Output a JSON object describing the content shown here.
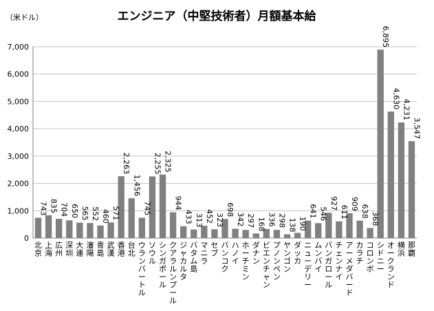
{
  "chart_data": {
    "type": "bar",
    "title": "エンジニア（中堅技術者）月額基本給",
    "unit_label": "（米ドル）",
    "ylim": [
      0,
      7000
    ],
    "yticks": [
      "0",
      "1,000",
      "2,000",
      "3,000",
      "4,000",
      "5,000",
      "6,000",
      "7,000"
    ],
    "grid": true,
    "categories": [
      "北京",
      "上海",
      "広州",
      "深圳",
      "大連",
      "瀋陽",
      "青島",
      "武漢",
      "香港",
      "台北",
      "ウランバートル",
      "ソウル",
      "シンガポール",
      "クアラルンプール",
      "ジャカルタ",
      "バタム島",
      "マニラ",
      "セブ",
      "バンコク",
      "ハノイ",
      "ホーチミン",
      "ダナン",
      "ビエンチャン",
      "プノンペン",
      "ヤンゴン",
      "ダッカ",
      "ニューデリー",
      "ムンバイ",
      "バンガロール",
      "チェンナイ",
      "アーメダバード",
      "カラチ",
      "コロンボ",
      "シドニー",
      "オークランド",
      "横浜",
      "那覇"
    ],
    "values": [
      743,
      835,
      704,
      650,
      565,
      552,
      460,
      571,
      2263,
      1456,
      745,
      2255,
      2325,
      944,
      433,
      313,
      452,
      323,
      698,
      342,
      297,
      168,
      336,
      298,
      138,
      190,
      641,
      546,
      927,
      611,
      909,
      638,
      368,
      6895,
      4630,
      4231,
      3547
    ],
    "value_labels": [
      "743",
      "835",
      "704",
      "650",
      "565",
      "552",
      "460",
      "571",
      "2,263",
      "1,456",
      "745",
      "2,255",
      "2,325",
      "944",
      "433",
      "313",
      "452",
      "323",
      "698",
      "342",
      "297",
      "168",
      "336",
      "298",
      "138",
      "190",
      "641",
      "546",
      "927",
      "611",
      "909",
      "638",
      "368",
      "6,895",
      "4,630",
      "4,231",
      "3,547"
    ],
    "bar_color": "#808080"
  }
}
